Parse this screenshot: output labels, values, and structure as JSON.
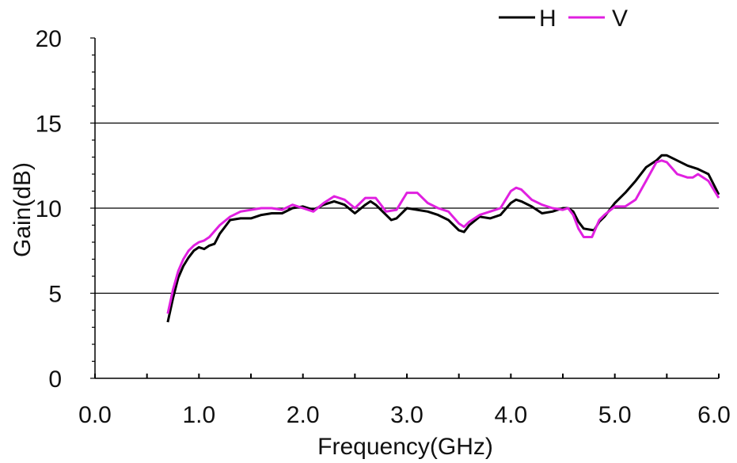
{
  "chart_data": {
    "type": "line",
    "title": "",
    "xlabel": "Frequency(GHz)",
    "ylabel": "Gain(dB)",
    "xlim": [
      0,
      6
    ],
    "ylim": [
      0,
      20
    ],
    "x_ticks": [
      0,
      1,
      2,
      3,
      4,
      5,
      6
    ],
    "x_tick_labels": [
      "0.0",
      "1.0",
      "2.0",
      "3.0",
      "4.0",
      "5.0",
      "6.0"
    ],
    "y_ticks": [
      0,
      5,
      10,
      15,
      20
    ],
    "y_tick_labels": [
      "0",
      "5",
      "10",
      "15",
      "20"
    ],
    "grid": "horizontal at 5, 10, 15",
    "legend": "top-right",
    "series": [
      {
        "name": "H",
        "color": "#000000",
        "points": [
          [
            0.7,
            3.3
          ],
          [
            0.75,
            4.7
          ],
          [
            0.8,
            5.9
          ],
          [
            0.85,
            6.6
          ],
          [
            0.9,
            7.1
          ],
          [
            0.95,
            7.5
          ],
          [
            1.0,
            7.7
          ],
          [
            1.05,
            7.6
          ],
          [
            1.1,
            7.8
          ],
          [
            1.15,
            7.9
          ],
          [
            1.2,
            8.5
          ],
          [
            1.25,
            8.9
          ],
          [
            1.3,
            9.3
          ],
          [
            1.4,
            9.4
          ],
          [
            1.5,
            9.4
          ],
          [
            1.6,
            9.6
          ],
          [
            1.7,
            9.7
          ],
          [
            1.8,
            9.7
          ],
          [
            1.9,
            10.0
          ],
          [
            2.0,
            10.1
          ],
          [
            2.1,
            9.9
          ],
          [
            2.2,
            10.2
          ],
          [
            2.3,
            10.4
          ],
          [
            2.4,
            10.2
          ],
          [
            2.5,
            9.7
          ],
          [
            2.6,
            10.2
          ],
          [
            2.65,
            10.4
          ],
          [
            2.7,
            10.2
          ],
          [
            2.8,
            9.6
          ],
          [
            2.85,
            9.3
          ],
          [
            2.9,
            9.4
          ],
          [
            3.0,
            10.0
          ],
          [
            3.1,
            9.9
          ],
          [
            3.2,
            9.8
          ],
          [
            3.3,
            9.6
          ],
          [
            3.4,
            9.3
          ],
          [
            3.5,
            8.7
          ],
          [
            3.55,
            8.6
          ],
          [
            3.6,
            9.0
          ],
          [
            3.7,
            9.5
          ],
          [
            3.8,
            9.4
          ],
          [
            3.9,
            9.6
          ],
          [
            4.0,
            10.3
          ],
          [
            4.05,
            10.5
          ],
          [
            4.1,
            10.4
          ],
          [
            4.2,
            10.1
          ],
          [
            4.3,
            9.7
          ],
          [
            4.4,
            9.8
          ],
          [
            4.5,
            10.0
          ],
          [
            4.55,
            10.0
          ],
          [
            4.6,
            9.8
          ],
          [
            4.65,
            9.2
          ],
          [
            4.7,
            8.8
          ],
          [
            4.8,
            8.7
          ],
          [
            4.85,
            9.2
          ],
          [
            4.9,
            9.5
          ],
          [
            5.0,
            10.3
          ],
          [
            5.1,
            10.9
          ],
          [
            5.2,
            11.6
          ],
          [
            5.3,
            12.4
          ],
          [
            5.4,
            12.8
          ],
          [
            5.45,
            13.1
          ],
          [
            5.5,
            13.1
          ],
          [
            5.6,
            12.8
          ],
          [
            5.7,
            12.5
          ],
          [
            5.8,
            12.3
          ],
          [
            5.9,
            12.0
          ],
          [
            6.0,
            10.8
          ]
        ]
      },
      {
        "name": "V",
        "color": "#e020e0",
        "points": [
          [
            0.7,
            3.8
          ],
          [
            0.75,
            5.2
          ],
          [
            0.8,
            6.3
          ],
          [
            0.85,
            7.0
          ],
          [
            0.9,
            7.5
          ],
          [
            0.95,
            7.8
          ],
          [
            1.0,
            8.0
          ],
          [
            1.05,
            8.1
          ],
          [
            1.1,
            8.3
          ],
          [
            1.2,
            9.0
          ],
          [
            1.3,
            9.5
          ],
          [
            1.4,
            9.8
          ],
          [
            1.5,
            9.9
          ],
          [
            1.6,
            10.0
          ],
          [
            1.7,
            10.0
          ],
          [
            1.8,
            9.9
          ],
          [
            1.9,
            10.2
          ],
          [
            2.0,
            10.0
          ],
          [
            2.1,
            9.8
          ],
          [
            2.2,
            10.3
          ],
          [
            2.3,
            10.7
          ],
          [
            2.4,
            10.5
          ],
          [
            2.5,
            10.0
          ],
          [
            2.6,
            10.6
          ],
          [
            2.7,
            10.6
          ],
          [
            2.8,
            9.8
          ],
          [
            2.9,
            9.9
          ],
          [
            3.0,
            10.9
          ],
          [
            3.1,
            10.9
          ],
          [
            3.2,
            10.3
          ],
          [
            3.3,
            10.0
          ],
          [
            3.4,
            9.8
          ],
          [
            3.5,
            9.1
          ],
          [
            3.55,
            8.9
          ],
          [
            3.6,
            9.2
          ],
          [
            3.7,
            9.6
          ],
          [
            3.8,
            9.8
          ],
          [
            3.9,
            10.0
          ],
          [
            4.0,
            11.0
          ],
          [
            4.05,
            11.2
          ],
          [
            4.1,
            11.1
          ],
          [
            4.2,
            10.5
          ],
          [
            4.3,
            10.2
          ],
          [
            4.4,
            10.0
          ],
          [
            4.5,
            9.9
          ],
          [
            4.55,
            10.0
          ],
          [
            4.6,
            9.6
          ],
          [
            4.65,
            8.8
          ],
          [
            4.7,
            8.3
          ],
          [
            4.78,
            8.3
          ],
          [
            4.85,
            9.3
          ],
          [
            4.9,
            9.6
          ],
          [
            5.0,
            10.1
          ],
          [
            5.1,
            10.1
          ],
          [
            5.2,
            10.5
          ],
          [
            5.3,
            11.6
          ],
          [
            5.4,
            12.7
          ],
          [
            5.45,
            12.8
          ],
          [
            5.5,
            12.7
          ],
          [
            5.6,
            12.0
          ],
          [
            5.7,
            11.8
          ],
          [
            5.75,
            11.8
          ],
          [
            5.8,
            12.0
          ],
          [
            5.9,
            11.6
          ],
          [
            6.0,
            10.6
          ]
        ]
      }
    ]
  }
}
